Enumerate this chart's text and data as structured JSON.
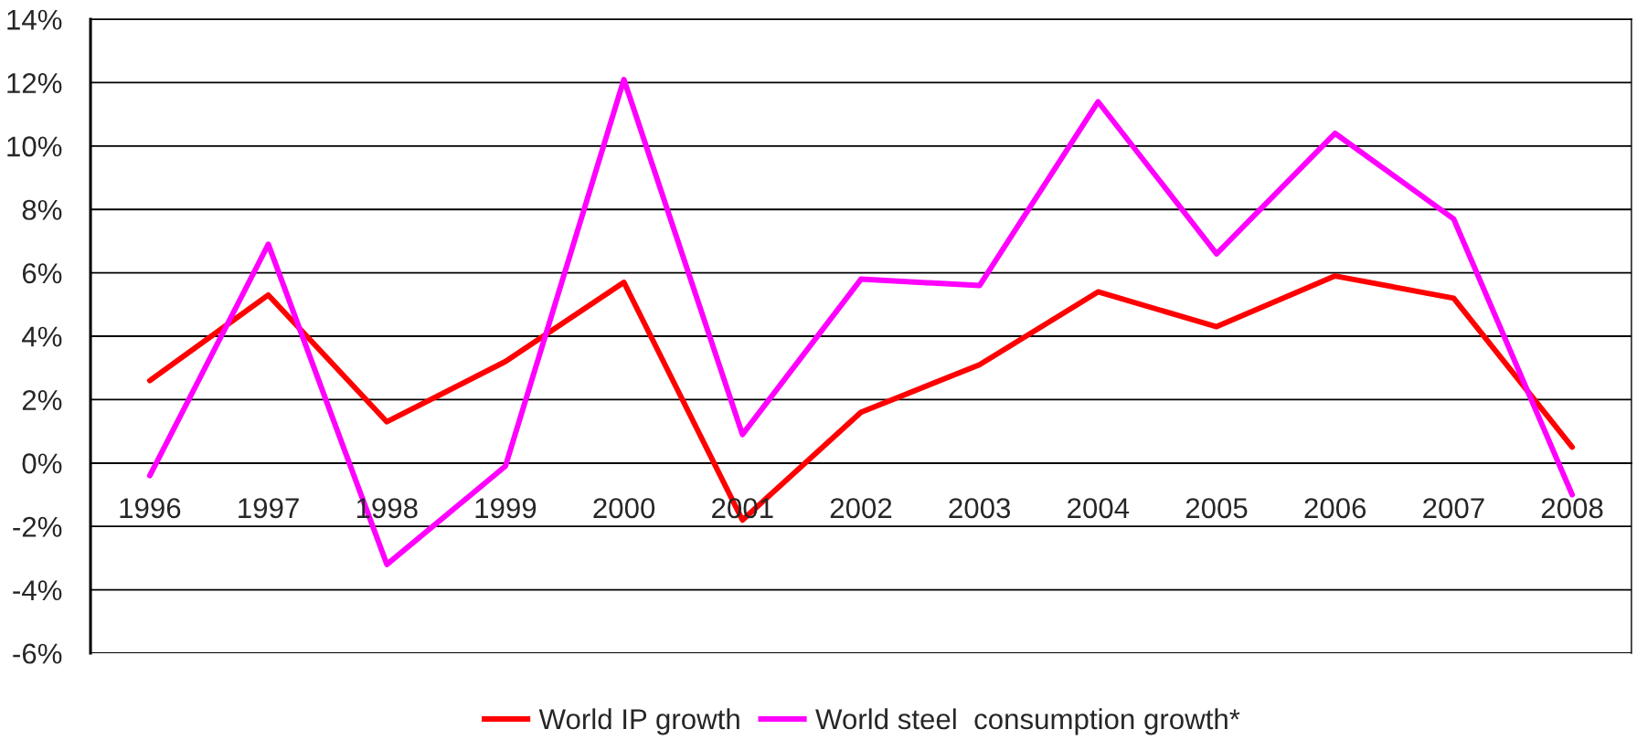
{
  "chart_data": {
    "type": "line",
    "categories": [
      "1996",
      "1997",
      "1998",
      "1999",
      "2000",
      "2001",
      "2002",
      "2003",
      "2004",
      "2005",
      "2006",
      "2007",
      "2008"
    ],
    "series": [
      {
        "name": "World IP growth",
        "color": "#ff0000",
        "values": [
          2.6,
          5.3,
          1.3,
          3.2,
          5.7,
          -1.8,
          1.6,
          3.1,
          5.4,
          4.3,
          5.9,
          5.2,
          0.5
        ]
      },
      {
        "name": "World steel  consumption growth*",
        "color": "#ff00ff",
        "values": [
          -0.4,
          6.9,
          -3.2,
          -0.1,
          12.1,
          0.9,
          5.8,
          5.6,
          11.4,
          6.6,
          10.4,
          7.7,
          -1.0
        ]
      }
    ],
    "ylim": [
      -6,
      14
    ],
    "yticks": [
      {
        "value": -6,
        "label": "-6%"
      },
      {
        "value": -4,
        "label": "-4%"
      },
      {
        "value": -2,
        "label": "-2%"
      },
      {
        "value": 0,
        "label": "0%"
      },
      {
        "value": 2,
        "label": "2%"
      },
      {
        "value": 4,
        "label": "4%"
      },
      {
        "value": 6,
        "label": "6%"
      },
      {
        "value": 8,
        "label": "8%"
      },
      {
        "value": 10,
        "label": "10%"
      },
      {
        "value": 12,
        "label": "12%"
      },
      {
        "value": 14,
        "label": "14%"
      }
    ],
    "grid": "y",
    "legend": "bottom",
    "line_style": "solid"
  }
}
